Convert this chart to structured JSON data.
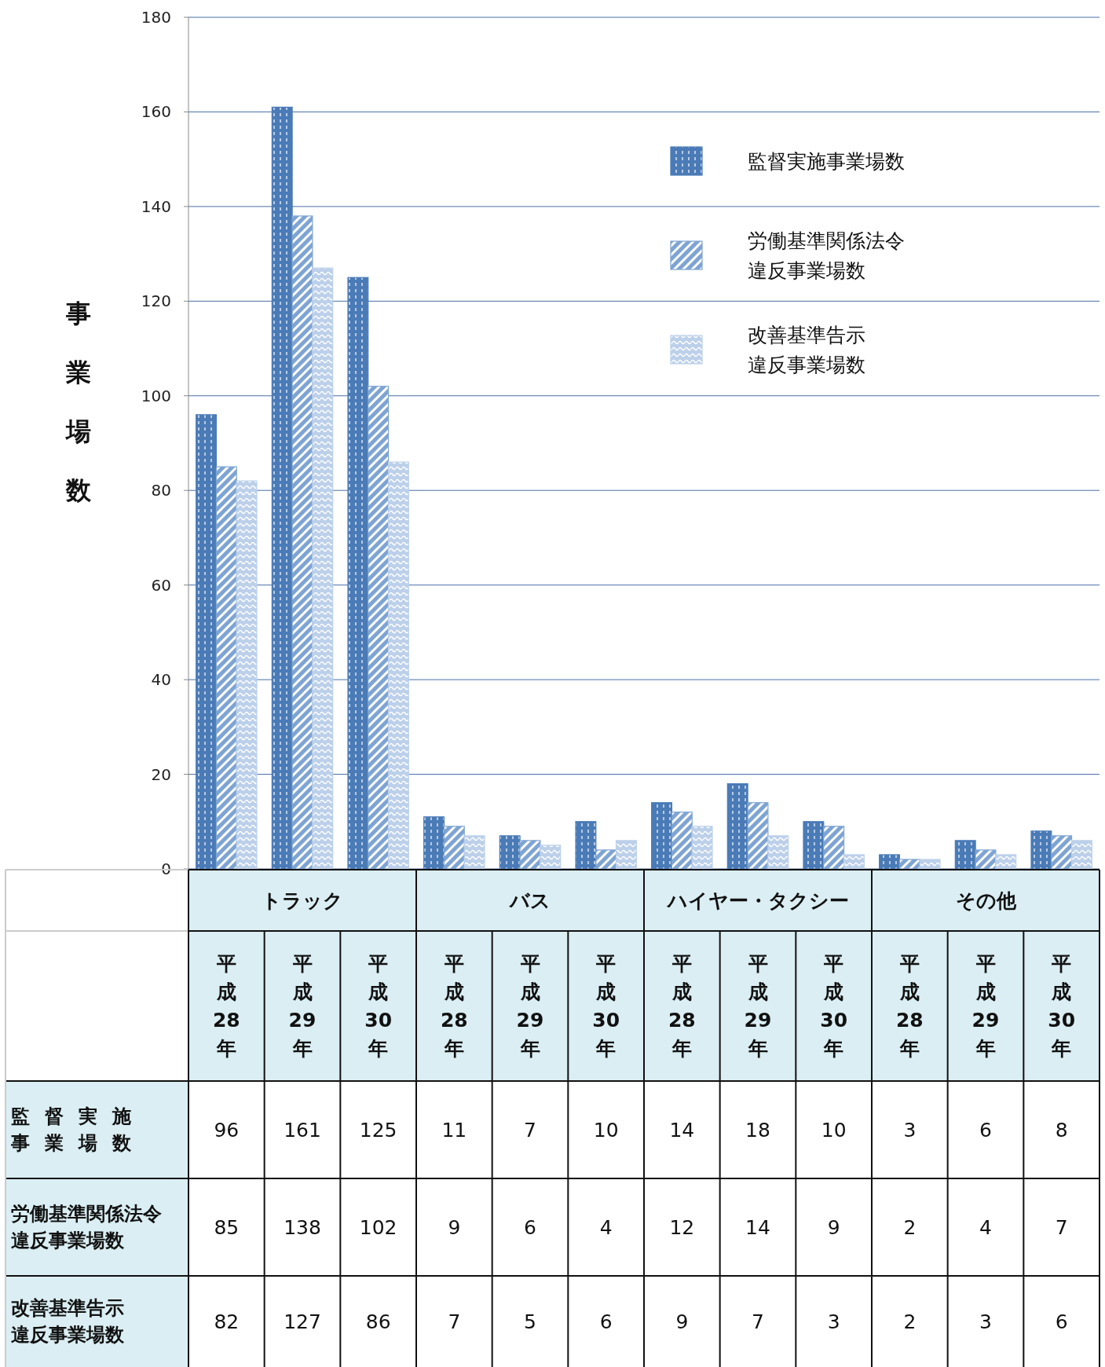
{
  "chart_data": {
    "type": "bar",
    "ylabel": "事業場数",
    "categories": [
      "平成28年",
      "平成29年",
      "平成30年",
      "平成28年",
      "平成29年",
      "平成30年",
      "平成28年",
      "平成29年",
      "平成30年",
      "平成28年",
      "平成29年",
      "平成30年"
    ],
    "annotations": [
      "トラック",
      "バス",
      "ハイヤー・タクシー",
      "その他"
    ],
    "series": [
      {
        "name": "監督実施事業場数",
        "color": "#4a7bb7",
        "values": [
          96,
          161,
          125,
          11,
          7,
          10,
          14,
          18,
          10,
          3,
          6,
          8
        ]
      },
      {
        "name": "労働基準関係法令違反事業場数",
        "color": "#7ea4d3",
        "values": [
          85,
          138,
          102,
          9,
          6,
          4,
          12,
          14,
          9,
          2,
          4,
          7
        ]
      },
      {
        "name": "改善基準告示違反事業場数",
        "color": "#bcd0ea",
        "values": [
          82,
          127,
          86,
          7,
          5,
          6,
          9,
          7,
          3,
          2,
          3,
          6
        ]
      }
    ],
    "ylim": [
      0,
      180
    ],
    "yticks": [
      0,
      20,
      40,
      60,
      80,
      100,
      120,
      140,
      160,
      180
    ],
    "grid": "y",
    "legend": "top right",
    "data_labels": true
  }
}
